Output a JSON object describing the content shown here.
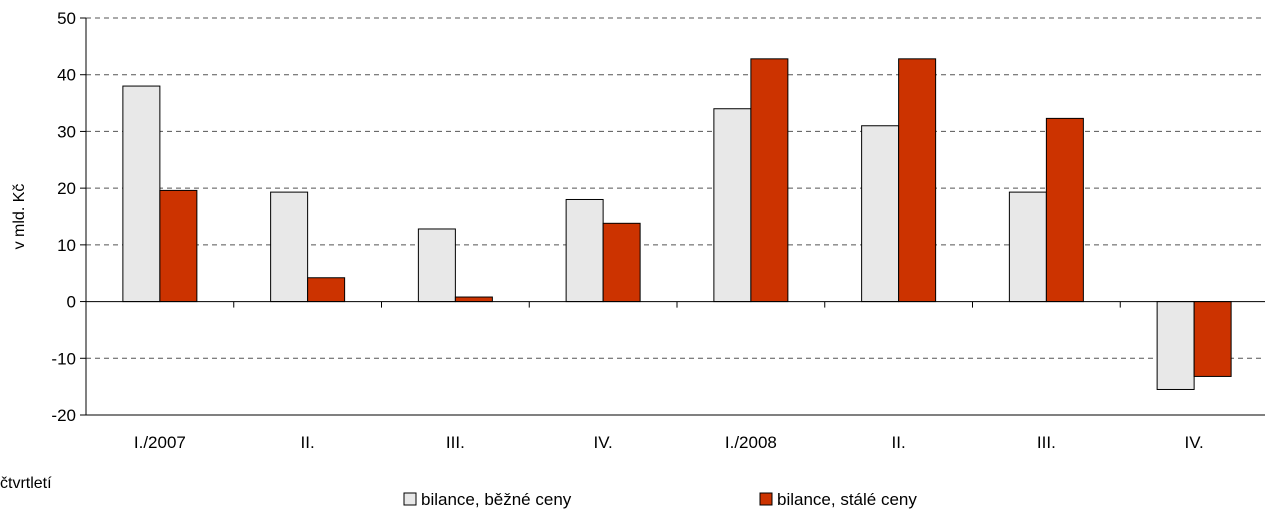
{
  "chart_data": {
    "type": "bar",
    "categories": [
      "I./2007",
      "II.",
      "III.",
      "IV.",
      "I./2008",
      "II.",
      "III.",
      "IV."
    ],
    "series": [
      {
        "name": "bilance, běžné ceny",
        "color": "#e8e8e8",
        "values": [
          38,
          19.3,
          12.8,
          18,
          34,
          31,
          19.3,
          -15.5
        ]
      },
      {
        "name": "bilance, stálé ceny",
        "color": "#cc3300",
        "values": [
          19.6,
          4.2,
          0.8,
          13.8,
          42.8,
          42.8,
          32.3,
          -13.2
        ]
      }
    ],
    "title": "",
    "xlabel": "čtvrtletí",
    "ylabel": "v mld. Kč",
    "ylim": [
      -20,
      50
    ],
    "yticks": [
      -20,
      -10,
      0,
      10,
      20,
      30,
      40,
      50
    ],
    "grid": true,
    "legend_position": "bottom"
  }
}
